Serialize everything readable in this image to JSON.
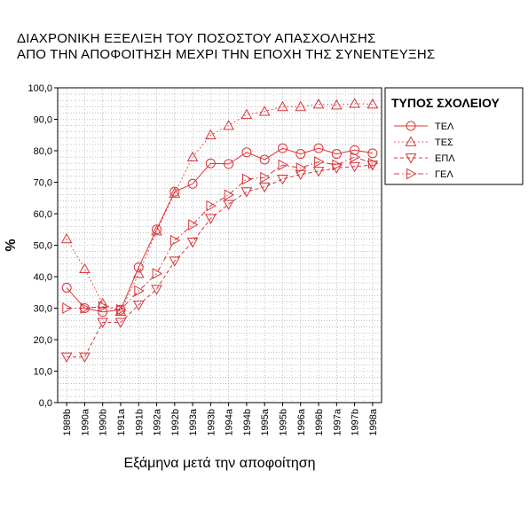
{
  "chart_data": {
    "type": "line",
    "title": "ΔΙΑΧΡΟΝΙΚΗ ΕΞΕΛΙΞΗ ΤΟΥ ΠΟΣΟΣΤΟΥ ΑΠΑΣΧΟΛΗΣΗΣ",
    "subtitle": "ΑΠΟ ΤΗΝ ΑΠΟΦΟΙΤΗΣΗ ΜΕΧΡΙ ΤΗΝ ΕΠΟΧΗ ΤΗΣ ΣΥΝΕΝΤΕΥΞΗΣ",
    "xlabel": "Εξάμηνα μετά την αποφοίτηση",
    "ylabel": "%",
    "ylim": [
      0,
      100
    ],
    "yticks": [
      "0,0",
      "10,0",
      "20,0",
      "30,0",
      "40,0",
      "50,0",
      "60,0",
      "70,0",
      "80,0",
      "90,0",
      "100,0"
    ],
    "grid": true,
    "legend_title": "ΤΥΠΟΣ ΣΧΟΛΕΙΟΥ",
    "legend_position": "right",
    "line_color": "#d9343a",
    "categories": [
      "1989b",
      "1990a",
      "1990b",
      "1991a",
      "1991b",
      "1992a",
      "1992b",
      "1993a",
      "1993b",
      "1994a",
      "1994b",
      "1995a",
      "1995b",
      "1996a",
      "1996b",
      "1997a",
      "1997b",
      "1998a"
    ],
    "series": [
      {
        "name": "ΤΕΛ",
        "marker": "circle",
        "dash": "solid",
        "values": [
          36.5,
          30.0,
          28.8,
          29.5,
          43.0,
          55.0,
          67.0,
          69.5,
          76.0,
          75.8,
          79.5,
          77.2,
          80.8,
          79.0,
          80.8,
          79.0,
          80.2,
          79.2
        ]
      },
      {
        "name": "ΤΕΣ",
        "marker": "triangle-up",
        "dash": "dotted",
        "values": [
          52.0,
          42.5,
          31.5,
          29.0,
          41.0,
          54.5,
          66.5,
          78.0,
          85.0,
          88.0,
          91.5,
          92.5,
          94.0,
          94.0,
          94.8,
          94.5,
          95.0,
          94.8
        ]
      },
      {
        "name": "ΕΠΛ",
        "marker": "triangle-down",
        "dash": "dashed",
        "values": [
          14.5,
          14.5,
          25.5,
          25.5,
          31.0,
          36.0,
          45.0,
          51.0,
          58.5,
          63.0,
          67.0,
          68.5,
          71.0,
          72.5,
          73.5,
          74.5,
          75.0,
          75.5
        ]
      },
      {
        "name": "ΓΕΛ",
        "marker": "triangle-right",
        "dash": "dashdot",
        "values": [
          30.0,
          30.0,
          30.5,
          29.5,
          35.5,
          41.0,
          51.5,
          56.5,
          62.5,
          66.0,
          71.0,
          71.5,
          75.5,
          74.5,
          76.5,
          75.5,
          78.0,
          76.0
        ]
      }
    ]
  }
}
